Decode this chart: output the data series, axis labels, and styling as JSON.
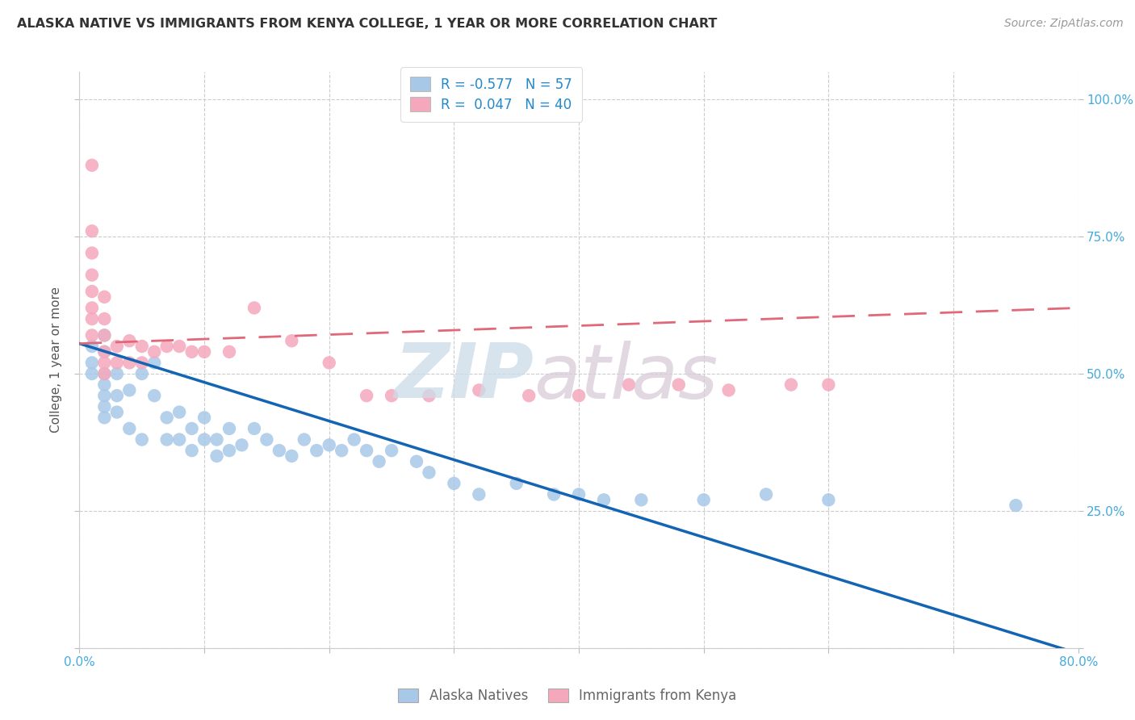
{
  "title": "ALASKA NATIVE VS IMMIGRANTS FROM KENYA COLLEGE, 1 YEAR OR MORE CORRELATION CHART",
  "source": "Source: ZipAtlas.com",
  "ylabel": "College, 1 year or more",
  "xlim": [
    0.0,
    0.8
  ],
  "ylim": [
    0.0,
    1.05
  ],
  "xticks": [
    0.0,
    0.1,
    0.2,
    0.3,
    0.4,
    0.5,
    0.6,
    0.7,
    0.8
  ],
  "xticklabels": [
    "0.0%",
    "",
    "",
    "",
    "",
    "",
    "",
    "",
    "80.0%"
  ],
  "yticks": [
    0.0,
    0.25,
    0.5,
    0.75,
    1.0
  ],
  "ytick_right_labels": [
    "",
    "25.0%",
    "50.0%",
    "75.0%",
    "100.0%"
  ],
  "r_blue": -0.577,
  "n_blue": 57,
  "r_pink": 0.047,
  "n_pink": 40,
  "blue_scatter_color": "#a8c8e8",
  "pink_scatter_color": "#f5a8bc",
  "blue_line_color": "#1464b4",
  "pink_line_color": "#e06878",
  "grid_color": "#cccccc",
  "title_color": "#333333",
  "source_color": "#999999",
  "tick_color": "#44aadd",
  "ylabel_color": "#555555",
  "legend_label_color": "#2288cc",
  "bottom_legend_color": "#666666",
  "blue_scatter_x": [
    0.01,
    0.01,
    0.01,
    0.02,
    0.02,
    0.02,
    0.02,
    0.02,
    0.02,
    0.02,
    0.03,
    0.03,
    0.03,
    0.04,
    0.04,
    0.05,
    0.05,
    0.06,
    0.06,
    0.07,
    0.07,
    0.08,
    0.08,
    0.09,
    0.09,
    0.1,
    0.1,
    0.11,
    0.11,
    0.12,
    0.12,
    0.13,
    0.14,
    0.15,
    0.16,
    0.17,
    0.18,
    0.19,
    0.2,
    0.21,
    0.22,
    0.23,
    0.24,
    0.25,
    0.27,
    0.28,
    0.3,
    0.32,
    0.35,
    0.38,
    0.4,
    0.42,
    0.45,
    0.5,
    0.55,
    0.6,
    0.75
  ],
  "blue_scatter_y": [
    0.55,
    0.52,
    0.5,
    0.57,
    0.54,
    0.5,
    0.48,
    0.46,
    0.44,
    0.42,
    0.5,
    0.46,
    0.43,
    0.47,
    0.4,
    0.5,
    0.38,
    0.52,
    0.46,
    0.42,
    0.38,
    0.43,
    0.38,
    0.4,
    0.36,
    0.42,
    0.38,
    0.38,
    0.35,
    0.4,
    0.36,
    0.37,
    0.4,
    0.38,
    0.36,
    0.35,
    0.38,
    0.36,
    0.37,
    0.36,
    0.38,
    0.36,
    0.34,
    0.36,
    0.34,
    0.32,
    0.3,
    0.28,
    0.3,
    0.28,
    0.28,
    0.27,
    0.27,
    0.27,
    0.28,
    0.27,
    0.26
  ],
  "pink_scatter_x": [
    0.01,
    0.01,
    0.01,
    0.01,
    0.01,
    0.01,
    0.01,
    0.01,
    0.02,
    0.02,
    0.02,
    0.02,
    0.02,
    0.02,
    0.03,
    0.03,
    0.04,
    0.04,
    0.05,
    0.05,
    0.06,
    0.07,
    0.08,
    0.09,
    0.1,
    0.12,
    0.14,
    0.17,
    0.2,
    0.23,
    0.25,
    0.28,
    0.32,
    0.36,
    0.4,
    0.44,
    0.48,
    0.52,
    0.57,
    0.6
  ],
  "pink_scatter_y": [
    0.88,
    0.76,
    0.72,
    0.68,
    0.65,
    0.62,
    0.6,
    0.57,
    0.64,
    0.6,
    0.57,
    0.54,
    0.52,
    0.5,
    0.55,
    0.52,
    0.56,
    0.52,
    0.55,
    0.52,
    0.54,
    0.55,
    0.55,
    0.54,
    0.54,
    0.54,
    0.62,
    0.56,
    0.52,
    0.46,
    0.46,
    0.46,
    0.47,
    0.46,
    0.46,
    0.48,
    0.48,
    0.47,
    0.48,
    0.48
  ]
}
